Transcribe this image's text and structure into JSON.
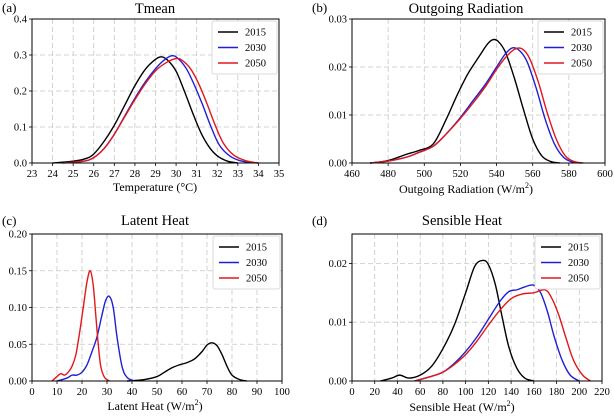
{
  "colors": {
    "2015": "#000000",
    "2030": "#1f1fd6",
    "2050": "#e0181b"
  },
  "chart_data": [
    {
      "type": "line",
      "panel_label": "(a)",
      "title": "Tmean",
      "xlabel": "Temperature (°C)",
      "ylabel": "",
      "xlim": [
        23,
        35
      ],
      "ylim": [
        0,
        0.4
      ],
      "xticks": [
        "23",
        "24",
        "25",
        "26",
        "27",
        "28",
        "29",
        "30",
        "31",
        "32",
        "33",
        "34",
        "35"
      ],
      "yticks": [
        "0.0",
        "0.1",
        "0.2",
        "0.3",
        "0.4"
      ],
      "grid": true,
      "legend_position": "top-right",
      "series": [
        {
          "name": "2015",
          "color": "#000000",
          "x": [
            24.0,
            25.0,
            25.6,
            26.0,
            26.5,
            27.0,
            27.5,
            28.0,
            28.5,
            29.0,
            29.3,
            29.6,
            30.0,
            30.4,
            30.8,
            31.2,
            31.6,
            32.0,
            32.5,
            33.0
          ],
          "y": [
            0.0,
            0.005,
            0.012,
            0.025,
            0.06,
            0.105,
            0.16,
            0.215,
            0.26,
            0.288,
            0.295,
            0.285,
            0.255,
            0.2,
            0.14,
            0.085,
            0.045,
            0.02,
            0.005,
            0.0
          ]
        },
        {
          "name": "2030",
          "color": "#1f1fd6",
          "x": [
            24.5,
            25.5,
            26.0,
            26.5,
            27.0,
            27.5,
            28.0,
            28.5,
            29.0,
            29.4,
            29.8,
            30.1,
            30.5,
            30.9,
            31.3,
            31.7,
            32.1,
            32.6,
            33.2,
            34.0
          ],
          "y": [
            0.0,
            0.005,
            0.015,
            0.04,
            0.08,
            0.13,
            0.18,
            0.225,
            0.262,
            0.285,
            0.298,
            0.29,
            0.262,
            0.215,
            0.16,
            0.1,
            0.05,
            0.02,
            0.005,
            0.0
          ]
        },
        {
          "name": "2050",
          "color": "#e0181b",
          "x": [
            24.5,
            25.5,
            26.0,
            26.5,
            27.0,
            27.5,
            28.0,
            28.5,
            29.0,
            29.5,
            30.0,
            30.3,
            30.7,
            31.1,
            31.5,
            31.9,
            32.3,
            32.8,
            33.4,
            34.0
          ],
          "y": [
            0.0,
            0.005,
            0.015,
            0.04,
            0.08,
            0.128,
            0.176,
            0.22,
            0.256,
            0.278,
            0.29,
            0.285,
            0.262,
            0.22,
            0.165,
            0.105,
            0.055,
            0.022,
            0.006,
            0.0
          ]
        }
      ]
    },
    {
      "type": "line",
      "panel_label": "(b)",
      "title": "Outgoing Radiation",
      "xlabel": "Outgoing Radiation (W/m²)",
      "ylabel": "",
      "xlim": [
        460,
        600
      ],
      "ylim": [
        0,
        0.03
      ],
      "xticks": [
        "460",
        "480",
        "500",
        "520",
        "540",
        "560",
        "580",
        "600"
      ],
      "yticks": [
        "0.00",
        "0.01",
        "0.02",
        "0.03"
      ],
      "grid": true,
      "legend_position": "top-right",
      "series": [
        {
          "name": "2015",
          "color": "#000000",
          "x": [
            470,
            480,
            490,
            497,
            505,
            512,
            518,
            524,
            530,
            535,
            538,
            541,
            545,
            550,
            555,
            560,
            565,
            570,
            575
          ],
          "y": [
            0.0,
            0.0005,
            0.0018,
            0.0026,
            0.004,
            0.009,
            0.014,
            0.0185,
            0.022,
            0.0248,
            0.0257,
            0.0253,
            0.023,
            0.0175,
            0.011,
            0.005,
            0.0015,
            0.0003,
            0.0
          ]
        },
        {
          "name": "2030",
          "color": "#1f1fd6",
          "x": [
            470,
            480,
            490,
            497,
            505,
            512,
            520,
            527,
            534,
            540,
            545,
            549,
            553,
            557,
            562,
            567,
            572,
            577,
            582,
            587
          ],
          "y": [
            0.0,
            0.0004,
            0.0012,
            0.0022,
            0.0035,
            0.006,
            0.0095,
            0.013,
            0.0165,
            0.02,
            0.0228,
            0.024,
            0.0233,
            0.021,
            0.0155,
            0.009,
            0.004,
            0.0012,
            0.0002,
            0.0
          ]
        },
        {
          "name": "2050",
          "color": "#e0181b",
          "x": [
            470,
            480,
            490,
            497,
            505,
            512,
            520,
            527,
            534,
            540,
            545,
            550,
            554,
            558,
            563,
            568,
            573,
            578,
            583,
            588
          ],
          "y": [
            0.0,
            0.0004,
            0.0012,
            0.0022,
            0.0035,
            0.006,
            0.0093,
            0.0125,
            0.016,
            0.0195,
            0.022,
            0.0237,
            0.0238,
            0.022,
            0.017,
            0.0105,
            0.005,
            0.0015,
            0.0003,
            0.0
          ]
        }
      ]
    },
    {
      "type": "line",
      "panel_label": "(c)",
      "title": "Latent Heat",
      "xlabel": "Latent Heat (W/m²)",
      "ylabel": "",
      "xlim": [
        0,
        100
      ],
      "ylim": [
        0,
        0.2
      ],
      "xticks": [
        "0",
        "10",
        "20",
        "30",
        "40",
        "50",
        "60",
        "70",
        "80",
        "90",
        "100"
      ],
      "yticks": [
        "0.00",
        "0.05",
        "0.10",
        "0.15",
        "0.20"
      ],
      "grid": true,
      "legend_position": "top-right",
      "series": [
        {
          "name": "2015",
          "color": "#000000",
          "x": [
            38,
            45,
            50,
            53,
            56,
            59,
            62,
            65,
            68,
            70,
            72,
            74,
            76,
            78,
            80,
            83,
            86
          ],
          "y": [
            0.0,
            0.002,
            0.006,
            0.012,
            0.018,
            0.022,
            0.025,
            0.03,
            0.04,
            0.049,
            0.052,
            0.048,
            0.036,
            0.02,
            0.008,
            0.002,
            0.0
          ]
        },
        {
          "name": "2030",
          "color": "#1f1fd6",
          "x": [
            10,
            14,
            16,
            18,
            20,
            22,
            24,
            26,
            28,
            29.5,
            31,
            32.5,
            34,
            36,
            38,
            41
          ],
          "y": [
            0.0,
            0.004,
            0.008,
            0.008,
            0.012,
            0.022,
            0.04,
            0.06,
            0.09,
            0.11,
            0.115,
            0.1,
            0.06,
            0.02,
            0.005,
            0.0
          ]
        },
        {
          "name": "2050",
          "color": "#e0181b",
          "x": [
            8,
            10,
            11.5,
            13,
            14.5,
            16,
            17.5,
            19,
            20.5,
            22,
            23.3,
            24.5,
            25.5,
            26.5,
            27.5,
            29,
            31
          ],
          "y": [
            0.0,
            0.006,
            0.01,
            0.008,
            0.012,
            0.02,
            0.035,
            0.065,
            0.1,
            0.135,
            0.15,
            0.13,
            0.09,
            0.05,
            0.02,
            0.005,
            0.0
          ]
        }
      ]
    },
    {
      "type": "line",
      "panel_label": "(d)",
      "title": "Sensible Heat",
      "xlabel": "Sensible Heat (W/m²)",
      "ylabel": "",
      "xlim": [
        0,
        220
      ],
      "ylim": [
        0,
        0.025
      ],
      "xticks": [
        "0",
        "20",
        "40",
        "60",
        "80",
        "100",
        "120",
        "140",
        "160",
        "180",
        "200",
        "220"
      ],
      "yticks": [
        "0.00",
        "0.01",
        "0.02"
      ],
      "grid": true,
      "legend_position": "top-right",
      "series": [
        {
          "name": "2015",
          "color": "#000000",
          "x": [
            25,
            35,
            42,
            50,
            60,
            70,
            80,
            90,
            100,
            108,
            115,
            120,
            126,
            132,
            138,
            145,
            152,
            160
          ],
          "y": [
            0.0,
            0.0005,
            0.001,
            0.0005,
            0.001,
            0.0025,
            0.0055,
            0.0095,
            0.015,
            0.0195,
            0.0205,
            0.0198,
            0.0165,
            0.011,
            0.0058,
            0.0022,
            0.0005,
            0.0
          ]
        },
        {
          "name": "2030",
          "color": "#1f1fd6",
          "x": [
            55,
            70,
            80,
            90,
            100,
            110,
            120,
            130,
            138,
            145,
            152,
            160,
            166,
            172,
            178,
            185,
            192,
            200
          ],
          "y": [
            0.0,
            0.0008,
            0.0015,
            0.003,
            0.005,
            0.0075,
            0.0105,
            0.0135,
            0.0152,
            0.0155,
            0.016,
            0.0163,
            0.015,
            0.0118,
            0.0075,
            0.0035,
            0.001,
            0.0
          ]
        },
        {
          "name": "2050",
          "color": "#e0181b",
          "x": [
            55,
            70,
            80,
            90,
            100,
            110,
            120,
            130,
            140,
            150,
            160,
            170,
            176,
            182,
            188,
            195,
            203,
            210
          ],
          "y": [
            0.0,
            0.0008,
            0.0015,
            0.0028,
            0.0045,
            0.0068,
            0.0095,
            0.012,
            0.014,
            0.0148,
            0.015,
            0.0155,
            0.014,
            0.0112,
            0.0075,
            0.0035,
            0.001,
            0.0
          ]
        }
      ]
    }
  ]
}
